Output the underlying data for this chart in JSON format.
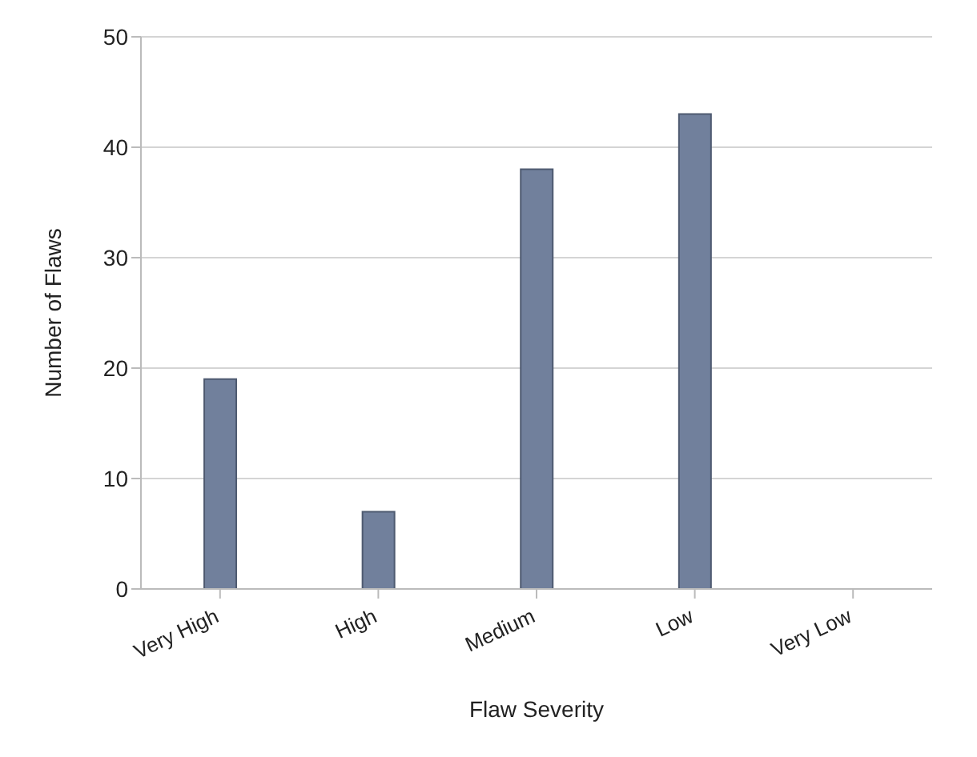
{
  "chart_data": {
    "type": "bar",
    "xlabel": "Flaw Severity",
    "ylabel": "Number of Flaws",
    "categories": [
      "Very High",
      "High",
      "Medium",
      "Low",
      "Very Low"
    ],
    "values": [
      19,
      7,
      38,
      43,
      0
    ],
    "color": "#71809c",
    "ylim": [
      0,
      50
    ],
    "yticks": [
      0,
      10,
      20,
      30,
      40,
      50
    ],
    "grid": "y"
  }
}
